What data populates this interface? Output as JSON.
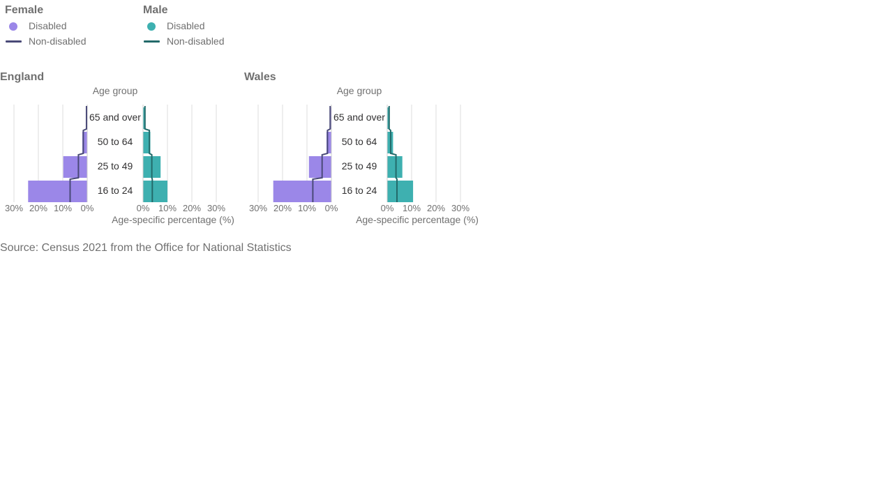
{
  "legend": {
    "groups": [
      {
        "title": "Female",
        "items": [
          {
            "label": "Disabled",
            "type": "dot",
            "color": "#9b87e8"
          },
          {
            "label": "Non-disabled",
            "type": "line",
            "color": "#4a4a78"
          }
        ]
      },
      {
        "title": "Male",
        "items": [
          {
            "label": "Disabled",
            "type": "dot",
            "color": "#3eb0b0"
          },
          {
            "label": "Non-disabled",
            "type": "line",
            "color": "#236a6a"
          }
        ]
      }
    ]
  },
  "source": "Source: Census 2021 from the Office for National Statistics",
  "chart_data": [
    {
      "type": "bar",
      "title": "England",
      "ylabel": "Age group",
      "xlabel": "Age-specific percentage (%)",
      "categories": [
        "65 and over",
        "50 to 64",
        "25 to 49",
        "16 to 24"
      ],
      "xlim": [
        0,
        30
      ],
      "xticks": [
        "0%",
        "10%",
        "20%",
        "30%"
      ],
      "series": [
        {
          "name": "Female Disabled",
          "side": "female",
          "kind": "bar",
          "color": "#9b87e8",
          "values": [
            0.2,
            2.0,
            9.8,
            24.2
          ]
        },
        {
          "name": "Male Disabled",
          "side": "male",
          "kind": "bar",
          "color": "#3eb0b0",
          "values": [
            0.8,
            3.0,
            7.2,
            10.0
          ]
        },
        {
          "name": "Female Non-disabled",
          "side": "female",
          "kind": "line",
          "color": "#4a4a78",
          "values": [
            0.3,
            1.6,
            3.6,
            7.0
          ]
        },
        {
          "name": "Male Non-disabled",
          "side": "male",
          "kind": "line",
          "color": "#236a6a",
          "values": [
            0.8,
            2.6,
            3.6,
            3.8
          ]
        }
      ],
      "grid": true
    },
    {
      "type": "bar",
      "title": "Wales",
      "ylabel": "Age group",
      "xlabel": "Age-specific percentage (%)",
      "categories": [
        "65 and over",
        "50 to 64",
        "25 to 49",
        "16 to 24"
      ],
      "xlim": [
        0,
        30
      ],
      "xticks": [
        "0%",
        "10%",
        "20%",
        "30%"
      ],
      "series": [
        {
          "name": "Female Disabled",
          "side": "female",
          "kind": "bar",
          "color": "#9b87e8",
          "values": [
            0.3,
            2.0,
            9.2,
            23.8
          ]
        },
        {
          "name": "Male Disabled",
          "side": "male",
          "kind": "bar",
          "color": "#3eb0b0",
          "values": [
            0.6,
            2.4,
            6.2,
            10.6
          ]
        },
        {
          "name": "Female Non-disabled",
          "side": "female",
          "kind": "line",
          "color": "#4a4a78",
          "values": [
            0.5,
            1.6,
            3.8,
            7.6
          ]
        },
        {
          "name": "Male Non-disabled",
          "side": "male",
          "kind": "line",
          "color": "#236a6a",
          "values": [
            0.8,
            1.4,
            3.6,
            4.0
          ]
        }
      ],
      "grid": true
    }
  ]
}
